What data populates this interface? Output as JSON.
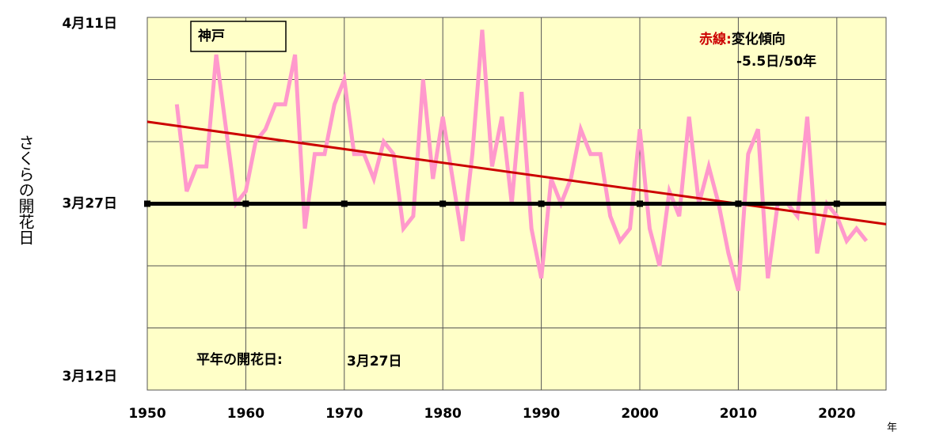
{
  "chart_data": {
    "type": "line",
    "title": "神戸",
    "ylabel": "さくらの開花日",
    "xlabel": "年",
    "trend_label": "赤線",
    "trend_sep": ":",
    "trend_title": "変化傾向",
    "trend_value": "-5.5日/50年",
    "normal_label": "平年の開花日:",
    "normal_value": "3月27日",
    "xlim": [
      1950,
      2025
    ],
    "xticks": [
      1950,
      1960,
      1970,
      1980,
      1990,
      2000,
      2010,
      2020
    ],
    "ylim": [
      -15,
      15
    ],
    "yticks": [
      {
        "value": -15,
        "label": "3月12日"
      },
      {
        "value": 0,
        "label": "3月27日"
      },
      {
        "value": 15,
        "label": "4月11日"
      }
    ],
    "ygrid": [
      -10,
      -5,
      5,
      10
    ],
    "grid": true,
    "background": "#ffffc8",
    "series": [
      {
        "color": "#ff99cc",
        "x": [
          1953,
          1954,
          1955,
          1956,
          1957,
          1958,
          1959,
          1960,
          1961,
          1962,
          1963,
          1964,
          1965,
          1966,
          1967,
          1968,
          1969,
          1970,
          1971,
          1972,
          1973,
          1974,
          1975,
          1976,
          1977,
          1978,
          1979,
          1980,
          1981,
          1982,
          1983,
          1984,
          1985,
          1986,
          1987,
          1988,
          1989,
          1990,
          1991,
          1992,
          1993,
          1994,
          1995,
          1996,
          1997,
          1998,
          1999,
          2000,
          2001,
          2002,
          2003,
          2004,
          2005,
          2006,
          2007,
          2008,
          2009,
          2010,
          2011,
          2012,
          2013,
          2014,
          2015,
          2016,
          2017,
          2018,
          2019,
          2020,
          2021,
          2022,
          2023
        ],
        "values": [
          8,
          1,
          3,
          3,
          12,
          6,
          0,
          1,
          5,
          6,
          8,
          8,
          12,
          -2,
          4,
          4,
          8,
          10,
          4,
          4,
          2,
          5,
          4,
          -2,
          -1,
          10,
          2,
          7,
          2,
          -3,
          4,
          14,
          3,
          7,
          0,
          9,
          -2,
          -6,
          2,
          0,
          2,
          6,
          4,
          4,
          -1,
          -3,
          -2,
          6,
          -2,
          -5,
          1,
          -1,
          7,
          0,
          3,
          0,
          -4,
          -7,
          4,
          6,
          -6,
          0,
          0,
          -1,
          7,
          -4,
          0,
          -1,
          -3,
          -2,
          -3
        ]
      },
      {
        "color": "#cc0000",
        "x": [
          1950,
          2025
        ],
        "values": [
          6.6,
          -1.65
        ]
      },
      {
        "color": "#000000",
        "x": [
          1950,
          2025
        ],
        "values": [
          0,
          0
        ],
        "markers": true
      }
    ]
  }
}
